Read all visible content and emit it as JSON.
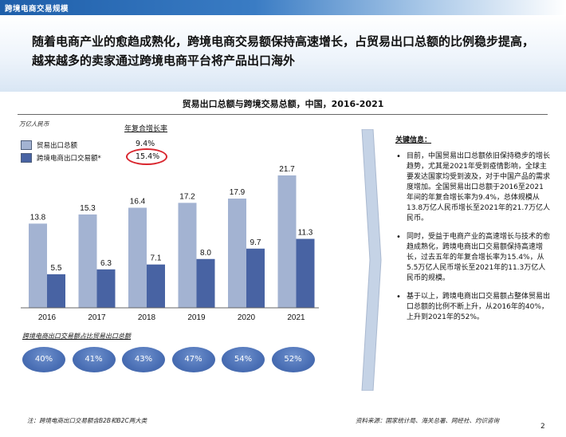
{
  "header": {
    "title": "跨境电商交易规模"
  },
  "headline": "随着电商产业的愈趋成熟化，跨境电商交易额保持高速增长，占贸易出口总额的比例稳步提高，越来越多的卖家通过跨境电商平台将产品出口海外",
  "colors": {
    "series1": "#a3b3d2",
    "series2": "#4863a3",
    "accent": "#d9262e",
    "pill": "#4a6fb5"
  },
  "chart_data": {
    "type": "bar",
    "title": "贸易出口总额与跨境交易总额，中国，2016-2021",
    "unit": "万亿人民币",
    "categories": [
      "2016",
      "2017",
      "2018",
      "2019",
      "2020",
      "2021"
    ],
    "series": [
      {
        "name": "贸易出口总额",
        "values": [
          13.8,
          15.3,
          16.4,
          17.2,
          17.9,
          21.7
        ],
        "cagr": "9.4%"
      },
      {
        "name": "跨境电商出口交易额*",
        "values": [
          5.5,
          6.3,
          7.1,
          8.0,
          9.7,
          11.3
        ],
        "cagr": "15.4%"
      }
    ],
    "ylim": [
      0,
      23
    ],
    "grid": false,
    "legend": "top-left",
    "cagr_title": "年复合增长率",
    "share_label": "跨境电商出口交易额占比贸易出口总额",
    "shares": [
      "40%",
      "41%",
      "43%",
      "47%",
      "54%",
      "52%"
    ]
  },
  "key_info": {
    "title": "关键信息：",
    "bullets": [
      "目前，中国贸易出口总额依旧保持稳步的增长趋势，尤其是2021年受到疫情影响，全球主要发达国家均受到波及，对于中国产品的需求度增加。全国贸易出口总额于2016至2021年间的年复合增长率为9.4%，总体规模从13.8万亿人民币增长至2021年的21.7万亿人民币。",
      "同时，受益于电商产业的高速增长与技术的愈趋成熟化，跨境电商出口交易额保持高速增长，过去五年的年复合增长率为15.4%，从5.5万亿人民币增长至2021年的11.3万亿人民币的规模。",
      "基于以上，跨境电商出口交易额占整体贸易出口总额的比例不断上升，从2016年的40%，上升到2021年的52%。"
    ]
  },
  "footer": {
    "note": "注：跨境电商出口交易额含B2B和B2C两大类",
    "source": "资料来源：国家统计局、海关总署、网经社、灼识咨询",
    "page": "2"
  }
}
